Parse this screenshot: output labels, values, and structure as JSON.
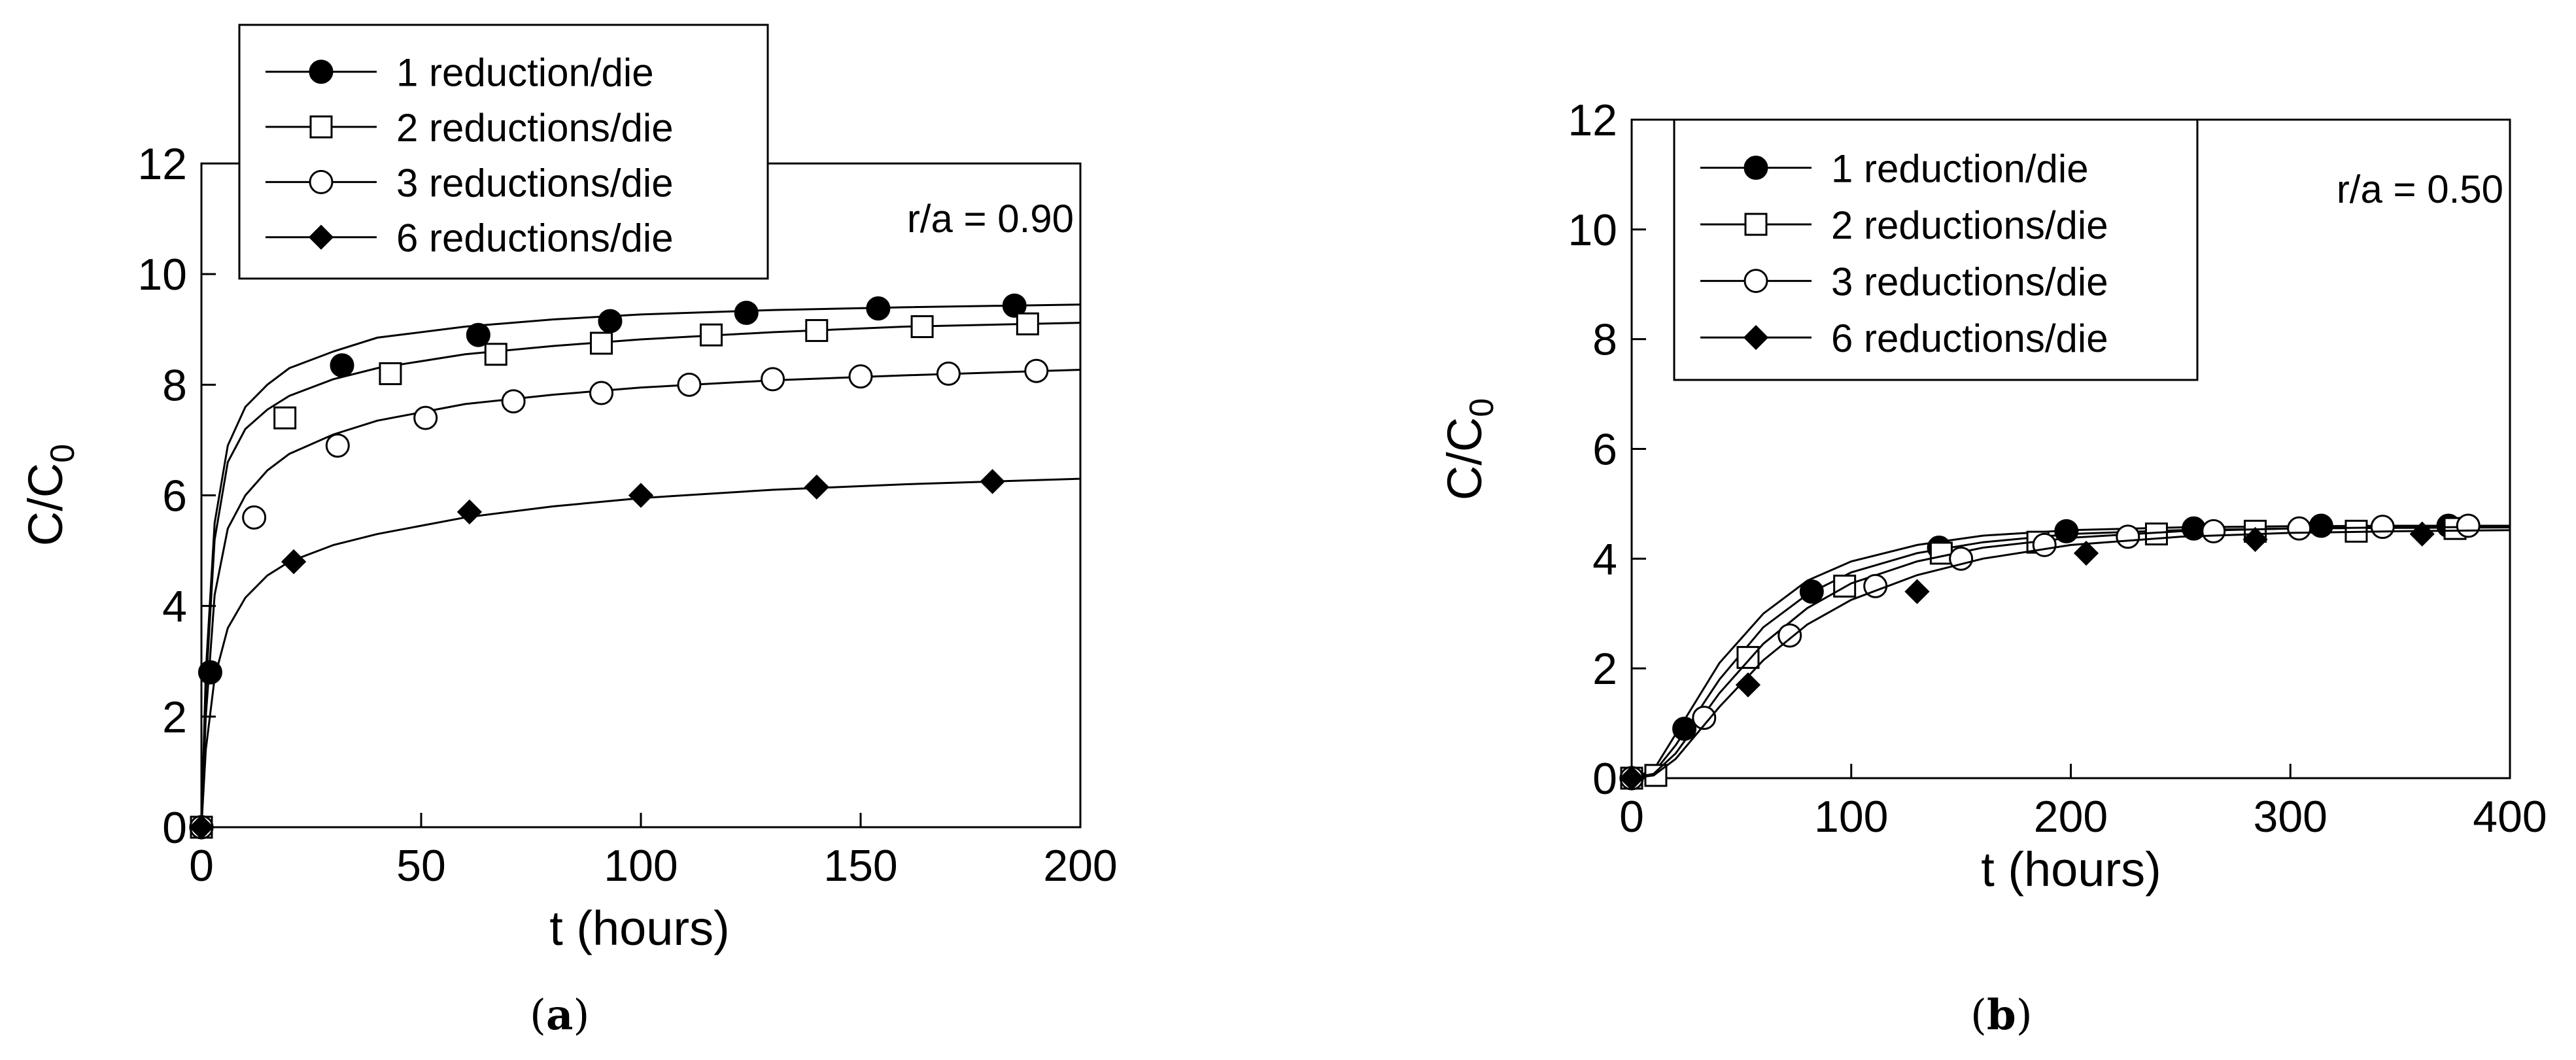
{
  "figure": {
    "panel_labels": [
      {
        "open": "(",
        "letter": "a",
        "close": ")"
      },
      {
        "open": "(",
        "letter": "b",
        "close": ")"
      }
    ]
  },
  "chart_data": [
    {
      "type": "scatter",
      "title": "",
      "annotation": "r/a = 0.90",
      "xlabel": "t (hours)",
      "ylabel_main": "C/C",
      "ylabel_sub": "0",
      "xlim": [
        0,
        200
      ],
      "ylim": [
        0,
        12
      ],
      "xticks": [
        0,
        50,
        100,
        150,
        200
      ],
      "yticks": [
        0,
        2,
        4,
        6,
        8,
        10,
        12
      ],
      "legend_position": "top-left",
      "series": [
        {
          "name": "1 reduction/die",
          "marker": "filled-circle",
          "x": [
            0,
            2,
            32,
            63,
            93,
            124,
            154,
            185
          ],
          "y": [
            0,
            2.8,
            8.35,
            8.9,
            9.15,
            9.3,
            9.38,
            9.43
          ],
          "fit_x": [
            0,
            1,
            3,
            6,
            10,
            15,
            20,
            30,
            40,
            60,
            80,
            100,
            130,
            160,
            200
          ],
          "fit_y": [
            0,
            2.8,
            5.5,
            6.9,
            7.6,
            8.0,
            8.3,
            8.6,
            8.85,
            9.05,
            9.18,
            9.27,
            9.35,
            9.4,
            9.45
          ]
        },
        {
          "name": "2 reductions/die",
          "marker": "open-square",
          "x": [
            0,
            19,
            43,
            67,
            91,
            116,
            140,
            164,
            188
          ],
          "y": [
            0,
            7.4,
            8.2,
            8.55,
            8.75,
            8.9,
            8.98,
            9.05,
            9.1
          ],
          "fit_x": [
            0,
            1,
            3,
            6,
            10,
            15,
            20,
            30,
            40,
            60,
            80,
            100,
            130,
            160,
            200
          ],
          "fit_y": [
            0,
            2.5,
            5.2,
            6.6,
            7.2,
            7.55,
            7.8,
            8.1,
            8.3,
            8.55,
            8.7,
            8.82,
            8.95,
            9.05,
            9.12
          ]
        },
        {
          "name": "3 reductions/die",
          "marker": "open-circle",
          "x": [
            0,
            12,
            31,
            51,
            71,
            91,
            111,
            130,
            150,
            170,
            190
          ],
          "y": [
            0,
            5.6,
            6.9,
            7.4,
            7.7,
            7.85,
            8.0,
            8.1,
            8.15,
            8.2,
            8.25
          ],
          "fit_x": [
            0,
            1,
            3,
            6,
            10,
            15,
            20,
            30,
            40,
            60,
            80,
            100,
            130,
            160,
            200
          ],
          "fit_y": [
            0,
            2.0,
            4.2,
            5.4,
            6.0,
            6.45,
            6.75,
            7.1,
            7.35,
            7.65,
            7.82,
            7.95,
            8.08,
            8.17,
            8.27
          ]
        },
        {
          "name": "6 reductions/die",
          "marker": "filled-diamond",
          "x": [
            0,
            21,
            61,
            100,
            140,
            180
          ],
          "y": [
            0,
            4.8,
            5.7,
            6.0,
            6.15,
            6.25
          ],
          "fit_x": [
            0,
            1,
            3,
            6,
            10,
            15,
            20,
            30,
            40,
            60,
            80,
            100,
            130,
            160,
            200
          ],
          "fit_y": [
            0,
            1.4,
            2.7,
            3.6,
            4.15,
            4.55,
            4.8,
            5.1,
            5.3,
            5.6,
            5.8,
            5.95,
            6.1,
            6.2,
            6.3
          ]
        }
      ]
    },
    {
      "type": "scatter",
      "title": "",
      "annotation": "r/a = 0.50",
      "xlabel": "t (hours)",
      "ylabel_main": "C/C",
      "ylabel_sub": "0",
      "xlim": [
        0,
        400
      ],
      "ylim": [
        0,
        12
      ],
      "xticks": [
        0,
        100,
        200,
        300,
        400
      ],
      "yticks": [
        0,
        2,
        4,
        6,
        8,
        10,
        12
      ],
      "legend_position": "top-left",
      "series": [
        {
          "name": "1 reduction/die",
          "marker": "filled-circle",
          "x": [
            0,
            24,
            82,
            140,
            198,
            256,
            314,
            372
          ],
          "y": [
            0,
            0.9,
            3.4,
            4.2,
            4.5,
            4.55,
            4.6,
            4.6
          ],
          "fit_x": [
            0,
            10,
            20,
            40,
            60,
            80,
            100,
            130,
            160,
            200,
            250,
            300,
            350,
            400
          ],
          "fit_y": [
            0,
            0.15,
            0.8,
            2.1,
            3.0,
            3.6,
            3.95,
            4.25,
            4.42,
            4.52,
            4.57,
            4.59,
            4.6,
            4.6
          ]
        },
        {
          "name": "2 reductions/die",
          "marker": "open-square",
          "x": [
            0,
            11,
            53,
            97,
            141,
            185,
            239,
            284,
            330,
            375
          ],
          "y": [
            0,
            0.05,
            2.2,
            3.5,
            4.1,
            4.3,
            4.45,
            4.5,
            4.5,
            4.55
          ],
          "fit_x": [
            0,
            10,
            20,
            40,
            60,
            80,
            100,
            130,
            160,
            200,
            250,
            300,
            350,
            400
          ],
          "fit_y": [
            0,
            0.1,
            0.6,
            1.8,
            2.75,
            3.35,
            3.75,
            4.1,
            4.3,
            4.45,
            4.52,
            4.55,
            4.56,
            4.57
          ]
        },
        {
          "name": "3 reductions/die",
          "marker": "open-circle",
          "x": [
            0,
            33,
            72,
            111,
            150,
            188,
            226,
            265,
            304,
            342,
            381
          ],
          "y": [
            0,
            1.1,
            2.6,
            3.5,
            4.0,
            4.25,
            4.4,
            4.5,
            4.55,
            4.58,
            4.6
          ],
          "fit_x": [
            0,
            10,
            20,
            40,
            60,
            80,
            100,
            130,
            160,
            200,
            250,
            300,
            350,
            400
          ],
          "fit_y": [
            0,
            0.08,
            0.45,
            1.55,
            2.45,
            3.1,
            3.55,
            3.95,
            4.2,
            4.38,
            4.5,
            4.55,
            4.57,
            4.58
          ]
        },
        {
          "name": "6 reductions/die",
          "marker": "filled-diamond",
          "x": [
            0,
            53,
            130,
            207,
            284,
            360
          ],
          "y": [
            0,
            1.7,
            3.4,
            4.1,
            4.35,
            4.45
          ],
          "fit_x": [
            0,
            10,
            20,
            40,
            60,
            80,
            100,
            130,
            160,
            200,
            250,
            300,
            350,
            400
          ],
          "fit_y": [
            0,
            0.05,
            0.35,
            1.3,
            2.15,
            2.8,
            3.25,
            3.7,
            4.0,
            4.25,
            4.4,
            4.47,
            4.5,
            4.52
          ]
        }
      ]
    }
  ]
}
